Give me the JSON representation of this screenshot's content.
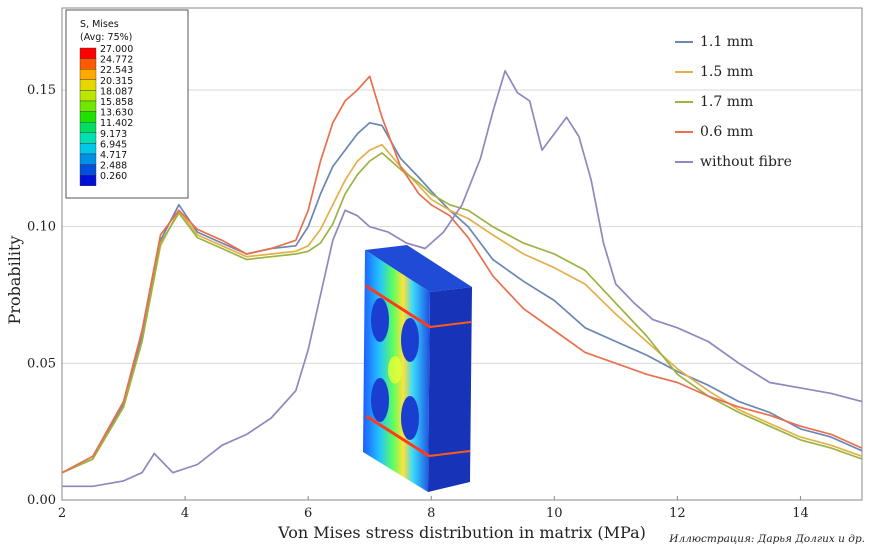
{
  "chart_data": {
    "type": "line",
    "xlabel": "Von Mises stress distribution in matrix (MPa)",
    "ylabel": "Probability",
    "xlim": [
      2,
      15
    ],
    "ylim": [
      0,
      0.18
    ],
    "xticks": [
      "2",
      "4",
      "6",
      "8",
      "10",
      "12",
      "14"
    ],
    "yticks": [
      "0.00",
      "0.05",
      "0.10",
      "0.15"
    ],
    "grid": "horizontal",
    "legend_position": "top-right",
    "series": [
      {
        "name": "1.1 mm",
        "color": "#6b86b3",
        "x": [
          2.0,
          2.5,
          3.0,
          3.3,
          3.6,
          3.9,
          4.2,
          4.6,
          5.0,
          5.4,
          5.8,
          6.0,
          6.2,
          6.4,
          6.6,
          6.8,
          7.0,
          7.2,
          7.5,
          7.8,
          8.0,
          8.3,
          8.6,
          9.0,
          9.5,
          10.0,
          10.5,
          11.0,
          11.5,
          12.0,
          12.5,
          13.0,
          13.5,
          14.0,
          14.5,
          15.0
        ],
        "y": [
          0.01,
          0.015,
          0.035,
          0.06,
          0.095,
          0.108,
          0.098,
          0.094,
          0.09,
          0.092,
          0.093,
          0.1,
          0.112,
          0.122,
          0.128,
          0.134,
          0.138,
          0.137,
          0.125,
          0.118,
          0.113,
          0.106,
          0.1,
          0.088,
          0.08,
          0.073,
          0.063,
          0.058,
          0.053,
          0.047,
          0.042,
          0.036,
          0.032,
          0.026,
          0.023,
          0.018
        ]
      },
      {
        "name": "1.5 mm",
        "color": "#e3b04a",
        "x": [
          2.0,
          2.5,
          3.0,
          3.3,
          3.6,
          3.9,
          4.2,
          4.6,
          5.0,
          5.4,
          5.8,
          6.0,
          6.2,
          6.4,
          6.6,
          6.8,
          7.0,
          7.2,
          7.5,
          7.8,
          8.0,
          8.3,
          8.6,
          9.0,
          9.5,
          10.0,
          10.5,
          11.0,
          11.5,
          12.0,
          12.5,
          13.0,
          13.5,
          14.0,
          14.5,
          15.0
        ],
        "y": [
          0.01,
          0.015,
          0.034,
          0.058,
          0.093,
          0.106,
          0.097,
          0.093,
          0.089,
          0.09,
          0.091,
          0.093,
          0.099,
          0.108,
          0.117,
          0.124,
          0.128,
          0.13,
          0.122,
          0.115,
          0.11,
          0.106,
          0.103,
          0.097,
          0.09,
          0.085,
          0.079,
          0.068,
          0.058,
          0.048,
          0.04,
          0.033,
          0.028,
          0.023,
          0.02,
          0.016
        ]
      },
      {
        "name": "1.7 mm",
        "color": "#9bb33f",
        "x": [
          2.0,
          2.5,
          3.0,
          3.3,
          3.6,
          3.9,
          4.2,
          4.6,
          5.0,
          5.4,
          5.8,
          6.0,
          6.2,
          6.4,
          6.6,
          6.8,
          7.0,
          7.2,
          7.5,
          7.8,
          8.0,
          8.3,
          8.6,
          9.0,
          9.5,
          10.0,
          10.5,
          11.0,
          11.5,
          12.0,
          12.5,
          13.0,
          13.5,
          14.0,
          14.5,
          15.0
        ],
        "y": [
          0.01,
          0.015,
          0.034,
          0.058,
          0.094,
          0.105,
          0.096,
          0.092,
          0.088,
          0.089,
          0.09,
          0.091,
          0.094,
          0.101,
          0.112,
          0.119,
          0.124,
          0.127,
          0.121,
          0.116,
          0.112,
          0.108,
          0.106,
          0.1,
          0.094,
          0.09,
          0.084,
          0.072,
          0.06,
          0.046,
          0.038,
          0.032,
          0.027,
          0.022,
          0.019,
          0.015
        ]
      },
      {
        "name": "0.6 mm",
        "color": "#e8704f",
        "x": [
          2.0,
          2.5,
          3.0,
          3.3,
          3.6,
          3.9,
          4.2,
          4.6,
          5.0,
          5.4,
          5.8,
          6.0,
          6.2,
          6.4,
          6.6,
          6.8,
          7.0,
          7.2,
          7.5,
          7.8,
          8.0,
          8.3,
          8.6,
          9.0,
          9.5,
          10.0,
          10.5,
          11.0,
          11.5,
          12.0,
          12.5,
          13.0,
          13.5,
          14.0,
          14.5,
          15.0
        ],
        "y": [
          0.01,
          0.016,
          0.036,
          0.062,
          0.097,
          0.106,
          0.099,
          0.095,
          0.09,
          0.092,
          0.095,
          0.106,
          0.124,
          0.138,
          0.146,
          0.15,
          0.155,
          0.14,
          0.122,
          0.112,
          0.108,
          0.104,
          0.096,
          0.082,
          0.07,
          0.062,
          0.054,
          0.05,
          0.046,
          0.043,
          0.038,
          0.034,
          0.031,
          0.027,
          0.024,
          0.019
        ]
      },
      {
        "name": "without fibre",
        "color": "#9385be",
        "x": [
          2.0,
          2.5,
          3.0,
          3.3,
          3.5,
          3.8,
          4.2,
          4.6,
          5.0,
          5.4,
          5.8,
          6.0,
          6.2,
          6.4,
          6.6,
          6.8,
          7.0,
          7.3,
          7.6,
          7.9,
          8.2,
          8.5,
          8.8,
          9.0,
          9.2,
          9.4,
          9.6,
          9.8,
          10.0,
          10.2,
          10.4,
          10.6,
          10.8,
          11.0,
          11.3,
          11.6,
          12.0,
          12.5,
          13.0,
          13.5,
          14.0,
          14.5,
          15.0
        ],
        "y": [
          0.005,
          0.005,
          0.007,
          0.01,
          0.017,
          0.01,
          0.013,
          0.02,
          0.024,
          0.03,
          0.04,
          0.055,
          0.075,
          0.095,
          0.106,
          0.104,
          0.1,
          0.098,
          0.094,
          0.092,
          0.098,
          0.108,
          0.125,
          0.142,
          0.157,
          0.149,
          0.146,
          0.128,
          0.134,
          0.14,
          0.133,
          0.117,
          0.094,
          0.079,
          0.072,
          0.066,
          0.063,
          0.058,
          0.05,
          0.043,
          0.041,
          0.039,
          0.036
        ]
      }
    ]
  },
  "colorbar": {
    "title": "S, Mises",
    "subtitle": "(Avg: 75%)",
    "labels": [
      "27.000",
      "24.772",
      "22.543",
      "20.315",
      "18.087",
      "15.858",
      "13.630",
      "11.402",
      "9.173",
      "6.945",
      "4.717",
      "2.488",
      "0.260"
    ],
    "colors": [
      "#ff0000",
      "#ff5a00",
      "#ffaa00",
      "#e5d800",
      "#b8e800",
      "#6fe800",
      "#20e000",
      "#00e060",
      "#00e0b0",
      "#00c8e8",
      "#0090e8",
      "#0050e0",
      "#0010d8"
    ]
  },
  "credit": "Иллюстрация: Дарья Долгих и др."
}
